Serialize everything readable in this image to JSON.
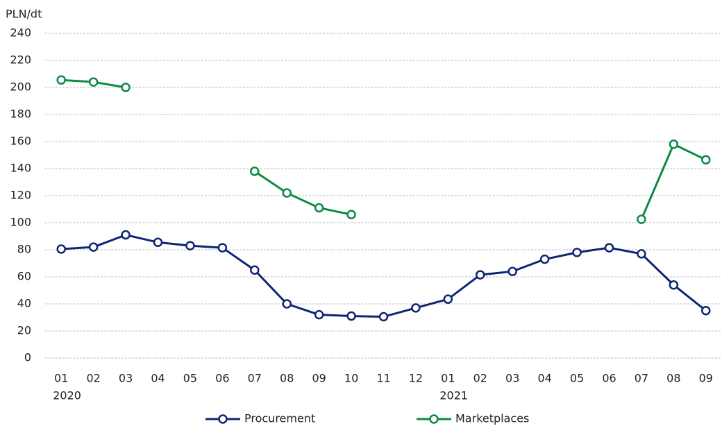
{
  "chart_data": {
    "type": "line",
    "y_axis_label": "PLN/dt",
    "categories": [
      "01",
      "02",
      "03",
      "04",
      "05",
      "06",
      "07",
      "08",
      "09",
      "10",
      "11",
      "12",
      "01",
      "02",
      "03",
      "04",
      "05",
      "06",
      "07",
      "08",
      "09"
    ],
    "category_groups": [
      {
        "label": "2020",
        "start": 0
      },
      {
        "label": "2021",
        "start": 12
      }
    ],
    "series": [
      {
        "name": "Procurement",
        "color": "#0d2673",
        "values": [
          80.5,
          82,
          91,
          85.5,
          83,
          81.5,
          65,
          40,
          32,
          31,
          30.5,
          37,
          43.5,
          61.5,
          64,
          73,
          78,
          81.5,
          77,
          54,
          35
        ]
      },
      {
        "name": "Marketplaces",
        "color": "#0a8a43",
        "values": [
          205.5,
          204,
          200,
          null,
          null,
          null,
          138,
          122,
          111,
          106,
          null,
          null,
          null,
          null,
          null,
          null,
          null,
          null,
          102.5,
          158,
          146.5
        ]
      }
    ],
    "ylim": [
      0,
      240
    ],
    "yticks": [
      0,
      20,
      40,
      60,
      80,
      100,
      120,
      140,
      160,
      180,
      200,
      220,
      240
    ],
    "grid": true,
    "legend": "bottom"
  }
}
